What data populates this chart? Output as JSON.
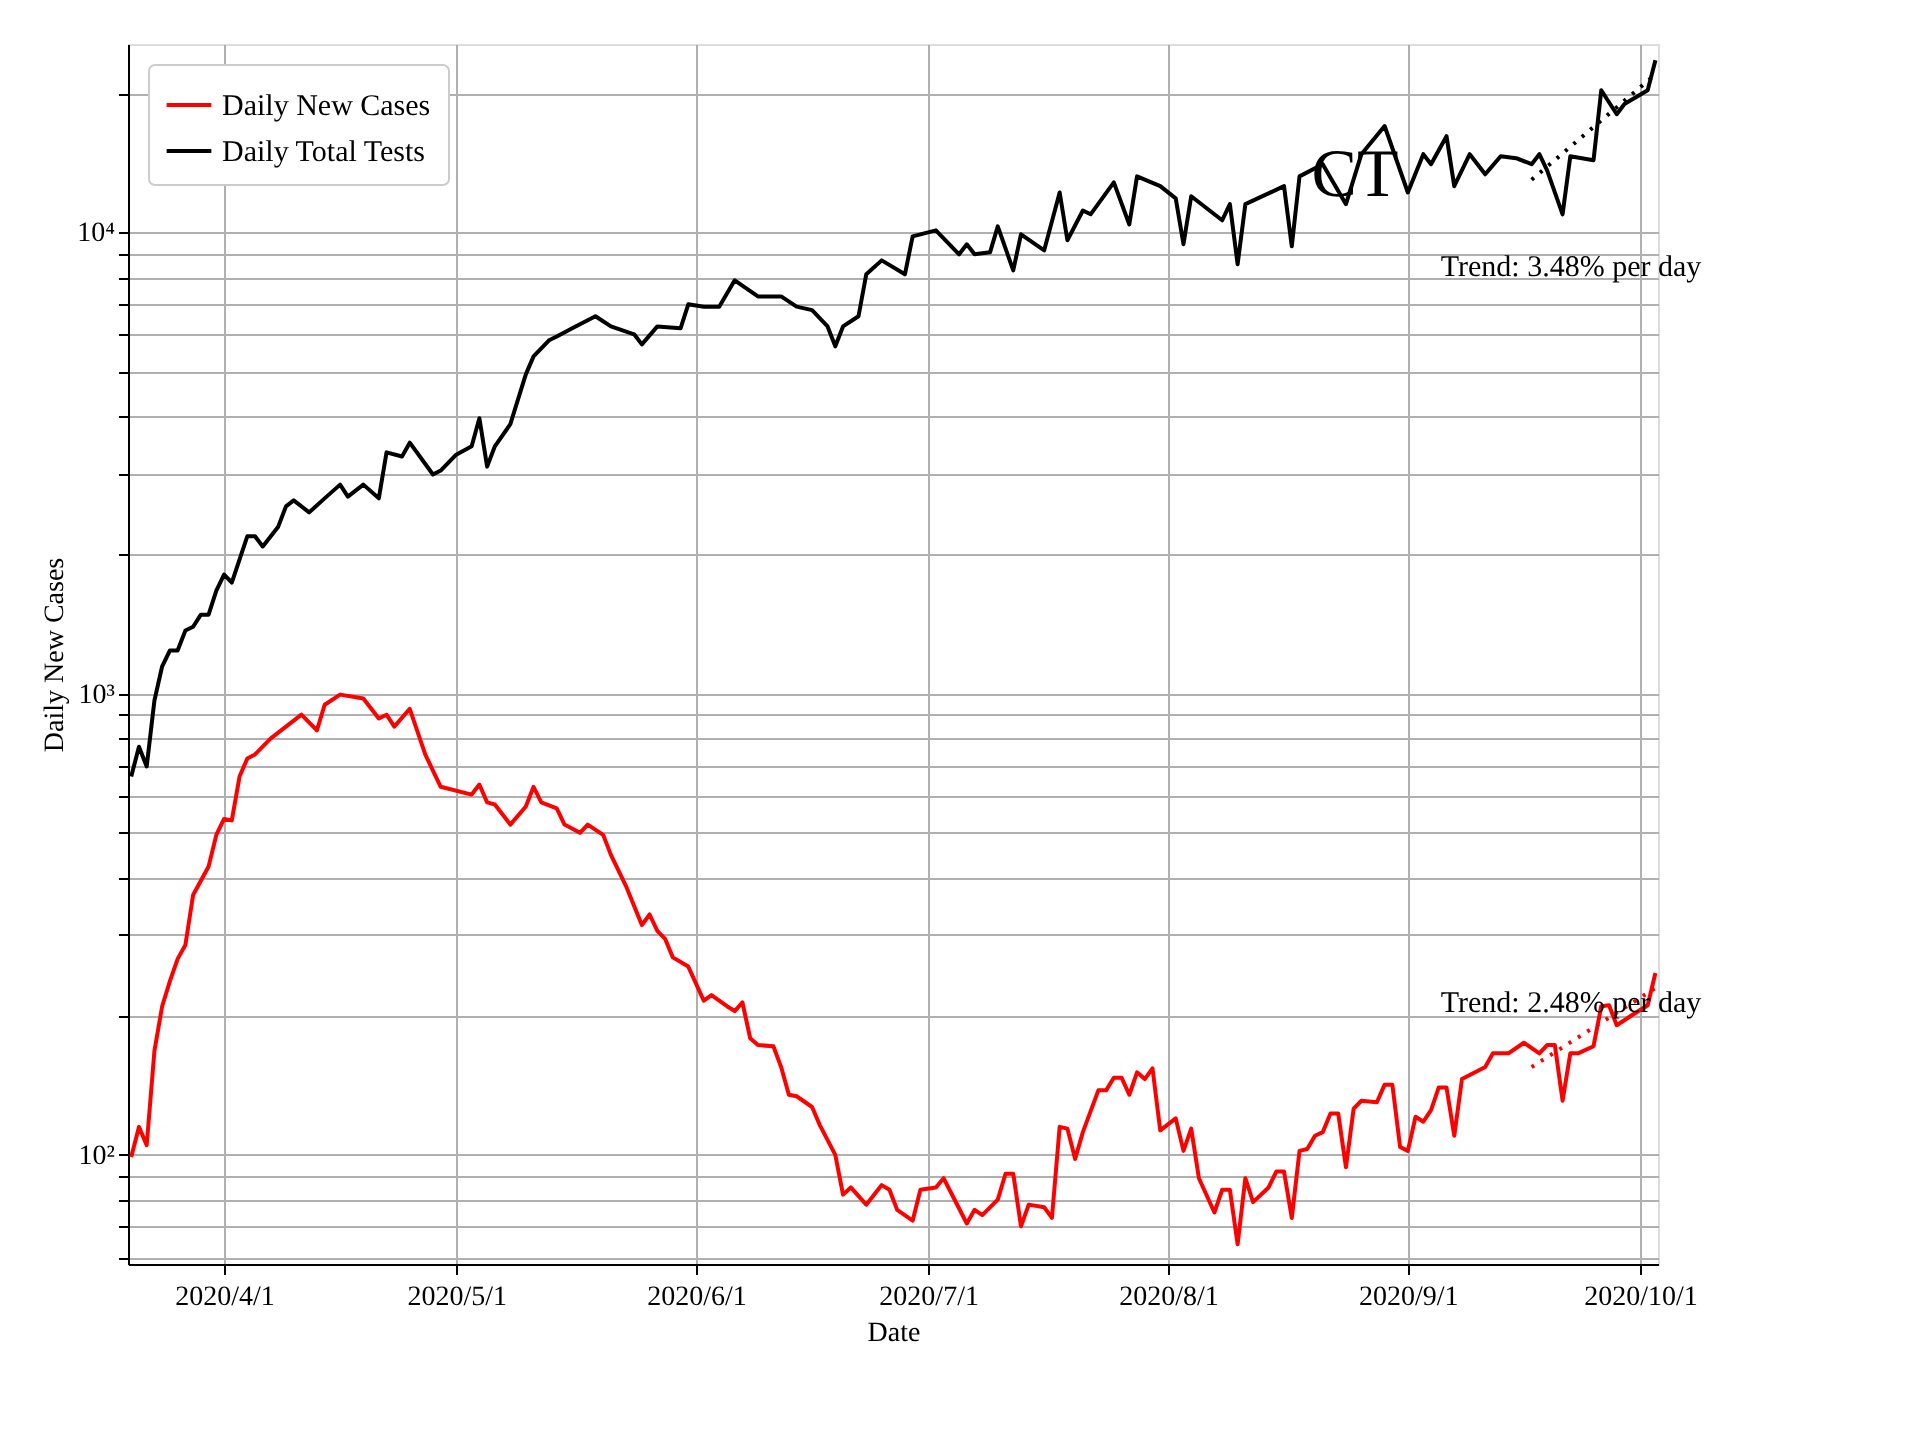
{
  "chart_data": {
    "type": "line",
    "xlabel": "Date",
    "ylabel": "Daily New Cases",
    "log": "y",
    "grid": true,
    "legend": "top left",
    "marker": "none",
    "xlim": [
      "2020-03-19T14:00",
      "2020-10-03T08:00"
    ],
    "xticks": [
      {
        "value": "2020-04-01",
        "label": "2020/4/1"
      },
      {
        "value": "2020-05-01",
        "label": "2020/5/1"
      },
      {
        "value": "2020-06-01",
        "label": "2020/6/1"
      },
      {
        "value": "2020-07-01",
        "label": "2020/7/1"
      },
      {
        "value": "2020-08-01",
        "label": "2020/8/1"
      },
      {
        "value": "2020-09-01",
        "label": "2020/9/1"
      },
      {
        "value": "2020-10-01",
        "label": "2020/10/1"
      }
    ],
    "ylim": [
      58,
      25600
    ],
    "yticks": [
      {
        "value": 60,
        "label": null
      },
      {
        "value": 70,
        "label": null
      },
      {
        "value": 80,
        "label": null
      },
      {
        "value": 90,
        "label": null
      },
      {
        "value": 100,
        "label": "10²"
      },
      {
        "value": 200,
        "label": null
      },
      {
        "value": 300,
        "label": null
      },
      {
        "value": 400,
        "label": null
      },
      {
        "value": 500,
        "label": null
      },
      {
        "value": 600,
        "label": null
      },
      {
        "value": 700,
        "label": null
      },
      {
        "value": 800,
        "label": null
      },
      {
        "value": 900,
        "label": null
      },
      {
        "value": 1000,
        "label": "10³"
      },
      {
        "value": 2000,
        "label": null
      },
      {
        "value": 3000,
        "label": null
      },
      {
        "value": 4000,
        "label": null
      },
      {
        "value": 5000,
        "label": null
      },
      {
        "value": 6000,
        "label": null
      },
      {
        "value": 7000,
        "label": null
      },
      {
        "value": 8000,
        "label": null
      },
      {
        "value": 9000,
        "label": null
      },
      {
        "value": 10000,
        "label": "10⁴"
      },
      {
        "value": 20000,
        "label": null
      }
    ],
    "annotations": [
      "CT",
      "Trend: 3.48% per day",
      "Trend: 2.48% per day"
    ],
    "series": [
      {
        "name": "Daily New Cases",
        "color": "#ff0000",
        "line_style": "solid",
        "x": [
          "2020-03-20",
          "2020-03-21",
          "2020-03-22",
          "2020-03-23",
          "2020-03-24",
          "2020-03-25",
          "2020-03-26",
          "2020-03-27",
          "2020-03-28",
          "2020-03-30",
          "2020-03-31",
          "2020-04-01",
          "2020-04-02",
          "2020-04-03",
          "2020-04-04",
          "2020-04-05",
          "2020-04-07",
          "2020-04-09",
          "2020-04-11",
          "2020-04-13",
          "2020-04-14",
          "2020-04-16",
          "2020-04-19",
          "2020-04-21",
          "2020-04-22",
          "2020-04-23",
          "2020-04-25",
          "2020-04-27",
          "2020-04-29",
          "2020-05-03",
          "2020-05-04",
          "2020-05-05",
          "2020-05-06",
          "2020-05-08",
          "2020-05-10",
          "2020-05-11",
          "2020-05-12",
          "2020-05-14",
          "2020-05-15",
          "2020-05-17",
          "2020-05-18",
          "2020-05-20",
          "2020-05-21",
          "2020-05-23",
          "2020-05-25",
          "2020-05-26",
          "2020-05-27",
          "2020-05-28",
          "2020-05-29",
          "2020-05-31",
          "2020-06-02",
          "2020-06-03",
          "2020-06-05",
          "2020-06-06",
          "2020-06-07",
          "2020-06-08",
          "2020-06-09",
          "2020-06-11",
          "2020-06-12",
          "2020-06-13",
          "2020-06-14",
          "2020-06-16",
          "2020-06-17",
          "2020-06-19",
          "2020-06-20",
          "2020-06-21",
          "2020-06-23",
          "2020-06-25",
          "2020-06-26",
          "2020-06-27",
          "2020-06-29",
          "2020-06-30",
          "2020-07-02",
          "2020-07-03",
          "2020-07-06",
          "2020-07-07",
          "2020-07-08",
          "2020-07-10",
          "2020-07-11",
          "2020-07-12",
          "2020-07-13",
          "2020-07-14",
          "2020-07-16",
          "2020-07-17",
          "2020-07-18",
          "2020-07-19",
          "2020-07-20",
          "2020-07-21",
          "2020-07-23",
          "2020-07-24",
          "2020-07-25",
          "2020-07-26",
          "2020-07-27",
          "2020-07-28",
          "2020-07-29",
          "2020-07-30",
          "2020-07-31",
          "2020-08-02",
          "2020-08-03",
          "2020-08-04",
          "2020-08-05",
          "2020-08-07",
          "2020-08-08",
          "2020-08-09",
          "2020-08-10",
          "2020-08-11",
          "2020-08-12",
          "2020-08-14",
          "2020-08-15",
          "2020-08-16",
          "2020-08-17",
          "2020-08-18",
          "2020-08-19",
          "2020-08-20",
          "2020-08-21",
          "2020-08-22",
          "2020-08-23",
          "2020-08-24",
          "2020-08-25",
          "2020-08-26",
          "2020-08-28",
          "2020-08-29",
          "2020-08-30",
          "2020-08-31",
          "2020-09-01",
          "2020-09-02",
          "2020-09-03",
          "2020-09-04",
          "2020-09-05",
          "2020-09-06",
          "2020-09-07",
          "2020-09-08",
          "2020-09-09",
          "2020-09-11",
          "2020-09-12",
          "2020-09-14",
          "2020-09-16",
          "2020-09-18",
          "2020-09-19",
          "2020-09-20",
          "2020-09-21",
          "2020-09-22",
          "2020-09-23",
          "2020-09-25",
          "2020-09-26",
          "2020-09-27",
          "2020-09-28",
          "2020-09-30",
          "2020-10-02",
          "2020-10-03"
        ],
        "values": [
          99,
          115,
          105,
          168,
          210,
          238,
          266,
          285,
          366,
          422,
          494,
          535,
          531,
          661,
          723,
          738,
          799,
          848,
          900,
          832,
          946,
          995,
          976,
          883,
          900,
          848,
          927,
          738,
          628,
          604,
          635,
          581,
          575,
          520,
          569,
          628,
          581,
          564,
          520,
          499,
          520,
          494,
          447,
          381,
          315,
          332,
          306,
          294,
          268,
          256,
          216,
          222,
          210,
          205,
          214,
          179,
          173,
          172,
          155,
          135,
          134,
          127,
          116,
          100,
          82,
          85,
          78,
          86,
          84,
          76,
          72,
          84,
          85,
          89,
          71,
          76,
          74,
          80,
          91,
          91,
          70,
          78,
          77,
          73,
          115,
          114,
          98,
          112,
          138,
          138,
          147,
          147,
          135,
          151,
          146,
          154,
          113,
          120,
          102,
          114,
          89,
          75,
          84,
          84,
          64,
          89,
          79,
          85,
          92,
          92,
          73,
          102,
          103,
          110,
          112,
          123,
          123,
          94,
          126,
          131,
          130,
          142,
          142,
          104,
          102,
          121,
          118,
          125,
          140,
          140,
          110,
          146,
          149,
          155,
          166,
          166,
          175,
          166,
          173,
          173,
          131,
          166,
          166,
          172,
          210,
          211,
          191,
          201,
          211,
          248
        ]
      },
      {
        "name": "Daily Total Tests",
        "color": "#000000",
        "line_style": "solid",
        "x": [
          "2020-03-20",
          "2020-03-21",
          "2020-03-22",
          "2020-03-23",
          "2020-03-24",
          "2020-03-25",
          "2020-03-26",
          "2020-03-27",
          "2020-03-28",
          "2020-03-29",
          "2020-03-30",
          "2020-03-31",
          "2020-04-01",
          "2020-04-02",
          "2020-04-04",
          "2020-04-05",
          "2020-04-06",
          "2020-04-08",
          "2020-04-09",
          "2020-04-10",
          "2020-04-12",
          "2020-04-14",
          "2020-04-16",
          "2020-04-17",
          "2020-04-19",
          "2020-04-21",
          "2020-04-22",
          "2020-04-24",
          "2020-04-25",
          "2020-04-28",
          "2020-04-29",
          "2020-05-01",
          "2020-05-03",
          "2020-05-04",
          "2020-05-05",
          "2020-05-06",
          "2020-05-08",
          "2020-05-10",
          "2020-05-11",
          "2020-05-13",
          "2020-05-14",
          "2020-05-16",
          "2020-05-19",
          "2020-05-21",
          "2020-05-24",
          "2020-05-25",
          "2020-05-27",
          "2020-05-30",
          "2020-05-31",
          "2020-06-02",
          "2020-06-04",
          "2020-06-06",
          "2020-06-09",
          "2020-06-12",
          "2020-06-14",
          "2020-06-16",
          "2020-06-18",
          "2020-06-19",
          "2020-06-20",
          "2020-06-22",
          "2020-06-23",
          "2020-06-25",
          "2020-06-28",
          "2020-06-29",
          "2020-07-02",
          "2020-07-05",
          "2020-07-06",
          "2020-07-07",
          "2020-07-09",
          "2020-07-10",
          "2020-07-12",
          "2020-07-13",
          "2020-07-16",
          "2020-07-18",
          "2020-07-19",
          "2020-07-21",
          "2020-07-22",
          "2020-07-25",
          "2020-07-27",
          "2020-07-28",
          "2020-07-31",
          "2020-08-02",
          "2020-08-03",
          "2020-08-04",
          "2020-08-08",
          "2020-08-09",
          "2020-08-10",
          "2020-08-11",
          "2020-08-16",
          "2020-08-17",
          "2020-08-18",
          "2020-08-21",
          "2020-08-24",
          "2020-08-26",
          "2020-08-29",
          "2020-09-01",
          "2020-09-03",
          "2020-09-04",
          "2020-09-06",
          "2020-09-07",
          "2020-09-09",
          "2020-09-11",
          "2020-09-13",
          "2020-09-15",
          "2020-09-17",
          "2020-09-18",
          "2020-09-19",
          "2020-09-21",
          "2020-09-22",
          "2020-09-25",
          "2020-09-26",
          "2020-09-28",
          "2020-09-29",
          "2020-10-02",
          "2020-10-03"
        ],
        "values": [
          661,
          767,
          695,
          966,
          1146,
          1240,
          1240,
          1370,
          1396,
          1483,
          1483,
          1671,
          1811,
          1741,
          2193,
          2193,
          2084,
          2301,
          2546,
          2624,
          2471,
          2650,
          2838,
          2673,
          2838,
          2650,
          3334,
          3266,
          3499,
          2985,
          3045,
          3296,
          3436,
          3954,
          3105,
          3436,
          3837,
          4920,
          5383,
          5834,
          5945,
          6194,
          6577,
          6252,
          6011,
          5715,
          6252,
          6194,
          6982,
          6900,
          6900,
          7870,
          7262,
          7262,
          6900,
          6780,
          6252,
          5660,
          6252,
          6577,
          8110,
          8693,
          8110,
          9800,
          10100,
          8960,
          9420,
          8960,
          9050,
          10300,
          8270,
          9900,
          9140,
          12200,
          9610,
          11150,
          10940,
          12830,
          10400,
          13220,
          12590,
          11850,
          9420,
          11970,
          10620,
          11510,
          8530,
          11510,
          12590,
          9330,
          13220,
          14050,
          11510,
          14770,
          17000,
          12200,
          14770,
          14050,
          16160,
          12590,
          14770,
          13360,
          14620,
          14480,
          14050,
          14770,
          13620,
          10940,
          14620,
          14330,
          20320,
          18030,
          18970,
          20320,
          23600
        ]
      },
      {
        "type": "line",
        "color": "#000000",
        "line_style": "dotted",
        "x": [
          "2020-09-17",
          "2020-10-03"
        ],
        "values": [
          13000,
          22000
        ]
      },
      {
        "type": "line",
        "color": "#ff0000",
        "line_style": "dotted",
        "x": [
          "2020-09-17",
          "2020-10-03"
        ],
        "values": [
          155,
          230
        ]
      }
    ]
  }
}
